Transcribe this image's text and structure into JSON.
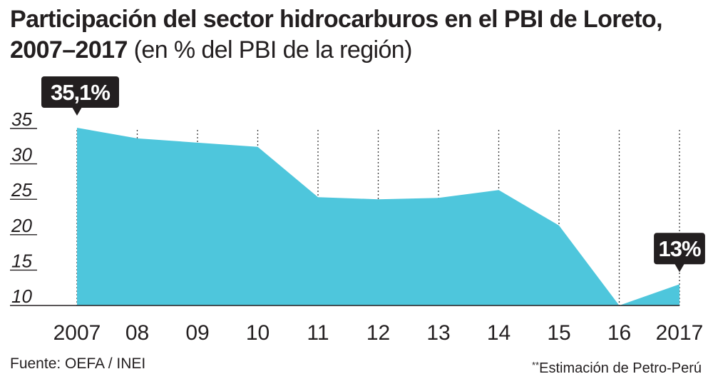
{
  "header": {
    "title_main": "Participación del sector hidrocarburos en el PBI de Loreto,",
    "title_year": "2007–2017",
    "title_unit": "(en % del PBI de la región)"
  },
  "colors": {
    "area": "#4ec6dc",
    "callout": "#231f20",
    "text": "#231f20"
  },
  "chart_data": {
    "type": "area",
    "x": [
      "2007",
      "08",
      "09",
      "10",
      "11",
      "12",
      "13",
      "14",
      "15",
      "16",
      "2017"
    ],
    "values": [
      35.1,
      33.6,
      33.0,
      32.4,
      25.3,
      25.0,
      25.2,
      26.3,
      21.3,
      10.0,
      13.0
    ],
    "ylim": [
      10,
      35
    ],
    "yticks": [
      35,
      30,
      25,
      20,
      15,
      10
    ],
    "grid": "vertical dotted",
    "callouts": [
      {
        "index": 0,
        "label": "35,1%"
      },
      {
        "index": 10,
        "label": "13%"
      }
    ]
  },
  "footer": {
    "source": "Fuente: OEFA / INEI",
    "note_mark": "**",
    "note": "Estimación de Petro-Perú"
  }
}
